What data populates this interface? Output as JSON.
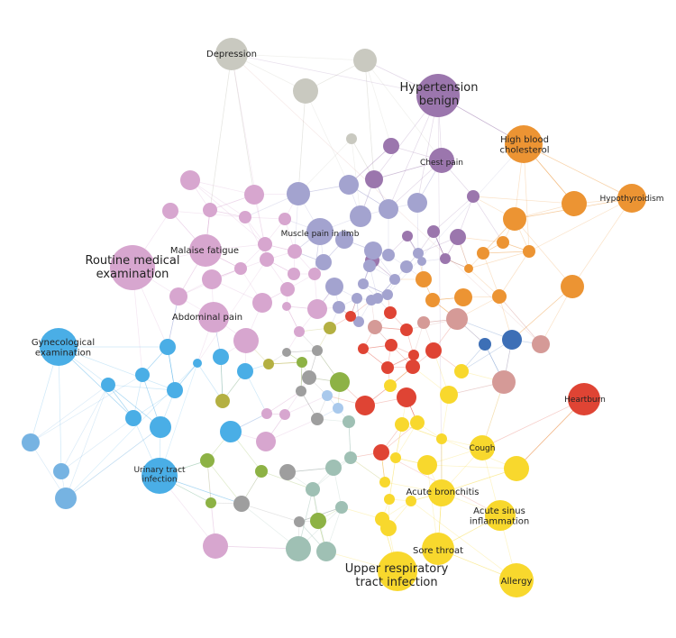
{
  "colors": {
    "gray": "#c9c9c0",
    "purple": "#9b76ad",
    "lavender": "#a3a3cf",
    "pink": "#d7a6cf",
    "orange": "#ec9433",
    "blue": "#4aaee6",
    "lightblue": "#76b3e2",
    "darkblue": "#3d6fb6",
    "red": "#df4434",
    "rose": "#d59a97",
    "yellow": "#f8d82d",
    "green": "#8db245",
    "olive": "#b4b042",
    "sage": "#9fc0b4",
    "darkgray": "#9e9e9e",
    "paleblue": "#a9c9ec"
  },
  "labels": {
    "depression": "Depression",
    "hypertension": "Hypertension\nbenign",
    "chest_pain": "Chest pain",
    "high_cholesterol": "High blood\ncholesterol",
    "hypothyroidism": "Hypothyroidism",
    "malaise": "Malaise  fatigue",
    "muscle_pain": "Muscle pain in limb",
    "routine_exam": "Routine medical\nexamination",
    "abdominal_pain": "Abdominal pain",
    "gyn_exam": "Gynecological\nexamination",
    "heartburn": "Heartburn",
    "cough": "Cough",
    "uti": "Urinary tract\ninfection",
    "acute_bronchitis": "Acute bronchitis",
    "acute_sinus": "Acute sinus\ninflammation",
    "sore_throat": "Sore throat",
    "uri": "Upper respiratory\ntract infection",
    "allergy": "Allergy"
  }
}
